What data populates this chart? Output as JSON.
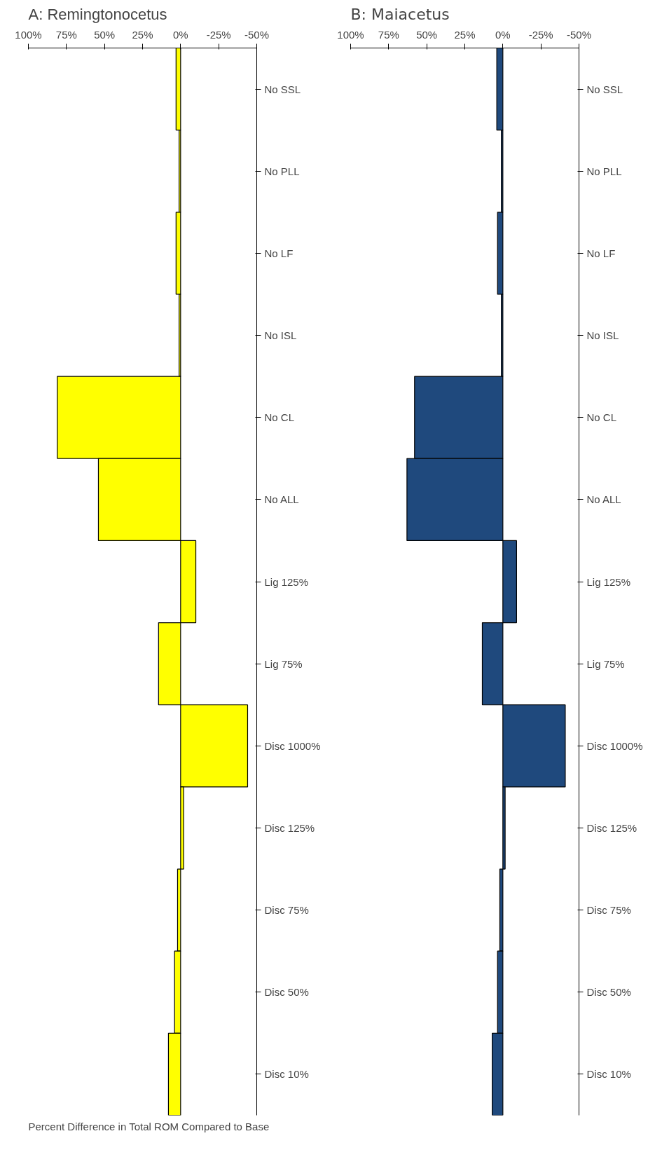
{
  "chart_data": [
    {
      "type": "bar",
      "orientation": "horizontal",
      "title": "A: Remingtonocetus",
      "xlabel": "Percent Difference in Total ROM Compared to Base",
      "categories": [
        "No SSL",
        "No PLL",
        "No LF",
        "No ISL",
        "No CL",
        "No ALL",
        "Lig 125%",
        "Lig 75%",
        "Disc 1000%",
        "Disc 125%",
        "Disc 75%",
        "Disc 50%",
        "Disc 10%"
      ],
      "values": [
        3,
        1,
        3,
        1,
        81,
        54,
        -10,
        14.5,
        -44,
        -2,
        2,
        4,
        8
      ],
      "color": "#ffff00",
      "xlim": [
        100,
        -50
      ],
      "xticks": [
        {
          "value": 100,
          "label": "100%"
        },
        {
          "value": 75,
          "label": "75%"
        },
        {
          "value": 50,
          "label": "50%"
        },
        {
          "value": 25,
          "label": "25%"
        },
        {
          "value": 0,
          "label": "0%"
        },
        {
          "value": -25,
          "label": "-25%"
        },
        {
          "value": -50,
          "label": "-50%"
        }
      ],
      "grid": false
    },
    {
      "type": "bar",
      "orientation": "horizontal",
      "title": "B: Maiacetus",
      "categories": [
        "No SSL",
        "No PLL",
        "No LF",
        "No ISL",
        "No CL",
        "No ALL",
        "Lig 125%",
        "Lig 75%",
        "Disc 1000%",
        "Disc 125%",
        "Disc 75%",
        "Disc 50%",
        "Disc 10%"
      ],
      "values": [
        4,
        1,
        3.5,
        1,
        58,
        63,
        -9,
        13.5,
        -41,
        -1.5,
        2,
        3.5,
        7
      ],
      "color": "#1f497d",
      "xlim": [
        100,
        -50
      ],
      "xticks": [
        {
          "value": 100,
          "label": "100%"
        },
        {
          "value": 75,
          "label": "75%"
        },
        {
          "value": 50,
          "label": "50%"
        },
        {
          "value": 25,
          "label": "25%"
        },
        {
          "value": 0,
          "label": "0%"
        },
        {
          "value": -25,
          "label": "-25%"
        },
        {
          "value": -50,
          "label": "-50%"
        }
      ],
      "grid": false
    }
  ]
}
